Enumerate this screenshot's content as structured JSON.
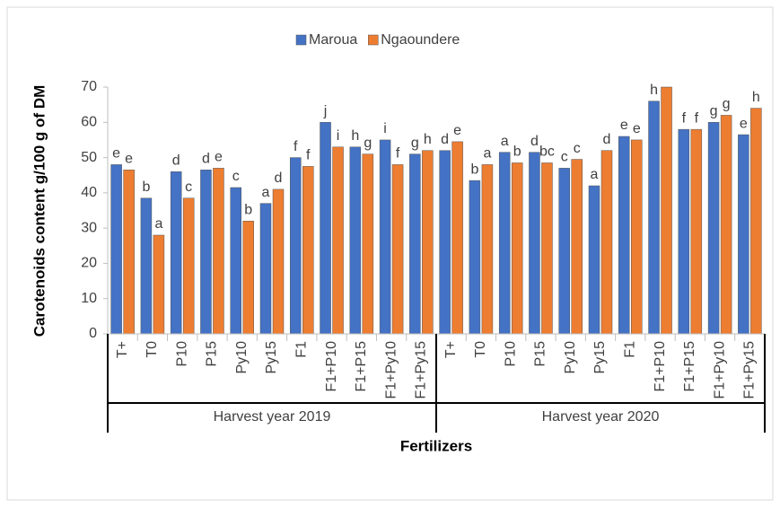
{
  "chart_data": {
    "type": "bar",
    "y_label": "Carotenoids content g/100 g of DM",
    "x_label": "Fertilizers",
    "categories": [
      "T+",
      "T0",
      "P10",
      "P15",
      "Py10",
      "Py15",
      "F1",
      "F1+P10",
      "F1+P15",
      "F1+Py10",
      "F1+Py15",
      "T+",
      "T0",
      "P10",
      "P15",
      "Py10",
      "Py15",
      "F1",
      "F1+P10",
      "F1+P15",
      "F1+Py10",
      "F1+Py15"
    ],
    "groups": [
      "Harvest year 2019",
      "Harvest year 2020"
    ],
    "series": [
      {
        "name": "Maroua",
        "color": "#4472c4",
        "values": [
          48,
          38.5,
          46,
          46.5,
          41.5,
          37,
          50,
          60,
          53,
          55,
          51,
          52,
          43.5,
          51.5,
          51.5,
          47,
          42,
          56,
          66,
          58,
          60,
          56.5
        ],
        "letters": [
          "e",
          "b",
          "d",
          "d",
          "c",
          "a",
          "f",
          "j",
          "h",
          "i",
          "g",
          "d",
          "b",
          "a",
          "d",
          "c",
          "a",
          "e",
          "h",
          "f",
          "g",
          "e"
        ]
      },
      {
        "name": "Ngaoundere",
        "color": "#ed7d31",
        "values": [
          46.5,
          28,
          38.5,
          47,
          32,
          41,
          47.5,
          53,
          51,
          48,
          52,
          54.5,
          48,
          48.5,
          48.5,
          49.5,
          52,
          55,
          70,
          58,
          62,
          64
        ],
        "letters": [
          "e",
          "a",
          "c",
          "e",
          "b",
          "d",
          "f",
          "i",
          "g",
          "f",
          "h",
          "e",
          "a",
          "b",
          "bc",
          "c",
          "d",
          "e",
          null,
          "f",
          "g",
          "h"
        ]
      }
    ],
    "ylim": [
      0,
      70
    ],
    "yticks": [
      0,
      10,
      20,
      30,
      40,
      50,
      60,
      70
    ],
    "grid": false,
    "legend": "top"
  }
}
